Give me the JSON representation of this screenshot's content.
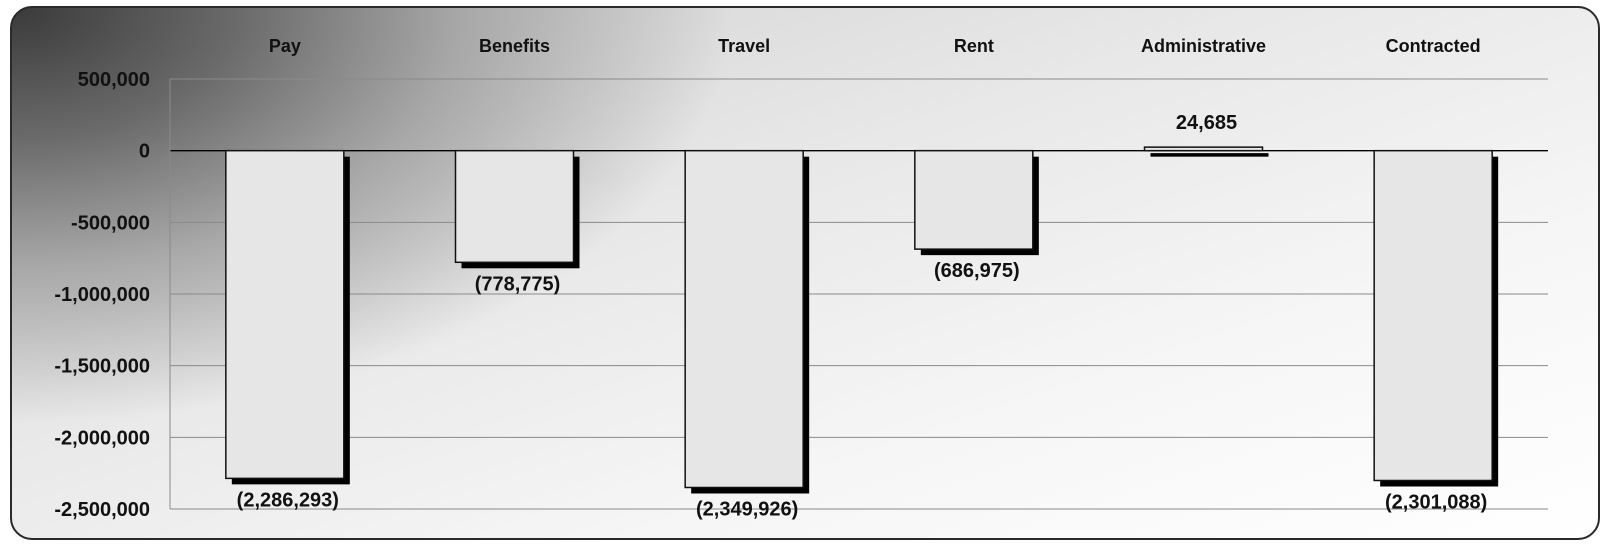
{
  "chart_data": {
    "type": "bar",
    "categories": [
      "Pay",
      "Benefits",
      "Travel",
      "Rent",
      "Administrative",
      "Contracted"
    ],
    "values": [
      -2286293,
      -778775,
      -2349926,
      -686975,
      24685,
      -2301088
    ],
    "data_labels": [
      "(2,286,293)",
      "(778,775)",
      "(2,349,926)",
      "(686,975)",
      "24,685",
      "(2,301,088)"
    ],
    "y_ticks": [
      500000,
      0,
      -500000,
      -1000000,
      -1500000,
      -2000000,
      -2500000
    ],
    "y_tick_labels": [
      "500,000",
      "0",
      "-500,000",
      "-1,000,000",
      "-1,500,000",
      "-2,000,000",
      "-2,500,000"
    ],
    "ylim": [
      -2500000,
      500000
    ],
    "category_axis_position": "top",
    "grid": true,
    "legend": "none",
    "colors": {
      "bar_fill": "#e6e6e6",
      "bar_stroke": "#111111",
      "bar_shadow": "#000000",
      "gridline": "#8a8a8a"
    }
  }
}
